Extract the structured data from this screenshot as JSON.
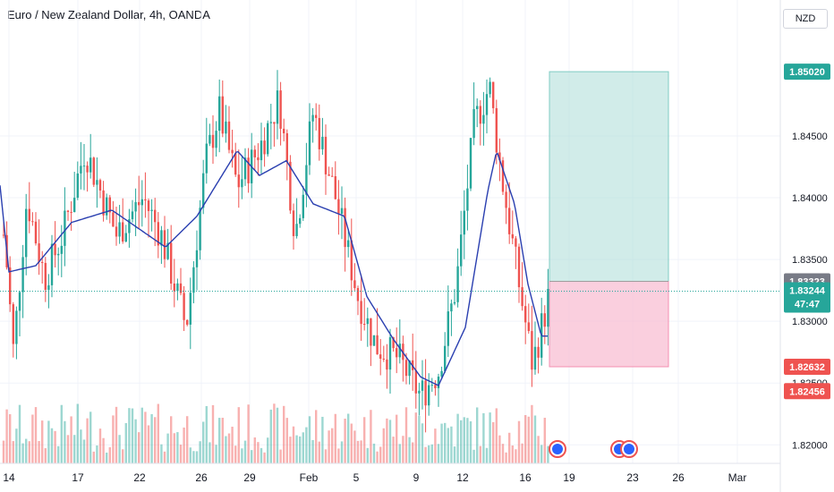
{
  "header": {
    "title": "Euro / New Zealand Dollar, 4h, OANDA",
    "currency": "NZD"
  },
  "colors": {
    "up": "#26a69a",
    "down": "#ef5350",
    "ma": "#2a3fb0",
    "target": "#b2dfdb",
    "stop": "#f8bbd0",
    "grid": "#f0f3fa"
  },
  "chart_data": {
    "type": "candlestick",
    "title": "Euro / New Zealand Dollar, 4h, OANDA",
    "ylim": [
      1.8185,
      1.856
    ],
    "y_ticks": [
      "1.82000",
      "1.82500",
      "1.83000",
      "1.83500",
      "1.84000",
      "1.84500"
    ],
    "x_ticks": [
      "14",
      "17",
      "22",
      "26",
      "29",
      "Feb",
      "5",
      "9",
      "12",
      "16",
      "19",
      "23",
      "26",
      "Mar"
    ],
    "price_labels": [
      {
        "value": "1.85020",
        "role": "target"
      },
      {
        "value": "1.83323",
        "role": "entry"
      },
      {
        "value": "1.83244",
        "role": "last"
      },
      {
        "value": "47:47",
        "role": "countdown"
      },
      {
        "value": "1.82632",
        "role": "stop"
      },
      {
        "value": "1.82456",
        "role": "low"
      }
    ],
    "position": {
      "entry": 1.83323,
      "target": 1.8502,
      "stop": 1.82632,
      "last": 1.83244
    },
    "moving_average_anchors": [
      [
        0,
        1.841
      ],
      [
        10,
        1.834
      ],
      [
        40,
        1.8345
      ],
      [
        80,
        1.838
      ],
      [
        125,
        1.839
      ],
      [
        185,
        1.836
      ],
      [
        220,
        1.8385
      ],
      [
        265,
        1.8438
      ],
      [
        290,
        1.8418
      ],
      [
        320,
        1.843
      ],
      [
        350,
        1.8395
      ],
      [
        385,
        1.8385
      ],
      [
        410,
        1.832
      ],
      [
        440,
        1.8285
      ],
      [
        470,
        1.8255
      ],
      [
        490,
        1.8248
      ],
      [
        520,
        1.8295
      ],
      [
        545,
        1.8405
      ],
      [
        555,
        1.8438
      ],
      [
        575,
        1.8395
      ],
      [
        590,
        1.833
      ],
      [
        605,
        1.8288
      ],
      [
        612,
        1.8288
      ]
    ],
    "price_path_anchors": [
      [
        5,
        1.837
      ],
      [
        15,
        1.8275
      ],
      [
        30,
        1.84
      ],
      [
        50,
        1.8335
      ],
      [
        70,
        1.837
      ],
      [
        95,
        1.844
      ],
      [
        130,
        1.837
      ],
      [
        160,
        1.84
      ],
      [
        180,
        1.837
      ],
      [
        208,
        1.8295
      ],
      [
        230,
        1.843
      ],
      [
        245,
        1.847
      ],
      [
        265,
        1.841
      ],
      [
        290,
        1.844
      ],
      [
        312,
        1.848
      ],
      [
        330,
        1.837
      ],
      [
        350,
        1.847
      ],
      [
        375,
        1.84
      ],
      [
        400,
        1.832
      ],
      [
        420,
        1.828
      ],
      [
        445,
        1.827
      ],
      [
        470,
        1.824
      ],
      [
        490,
        1.826
      ],
      [
        510,
        1.833
      ],
      [
        530,
        1.846
      ],
      [
        547,
        1.849
      ],
      [
        560,
        1.842
      ],
      [
        580,
        1.833
      ],
      [
        595,
        1.8265
      ],
      [
        610,
        1.831
      ],
      [
        616,
        1.833
      ]
    ]
  }
}
